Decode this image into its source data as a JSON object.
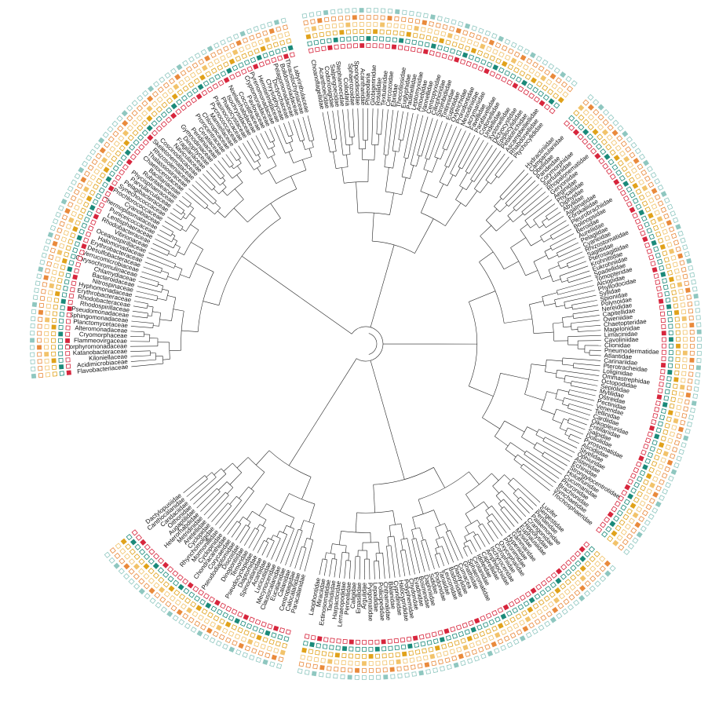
{
  "tree": {
    "groups": [
      {
        "name": "",
        "labels": [
          "Flavobacteriaceae",
          "Acidimicrobiaceae",
          "Kiloniellaceae",
          "Katanobacteraceae",
          "Porphyromonadaceae",
          "Flammeovirgaceae",
          "Cryomorphaceae",
          "Alteromonadaceae",
          "Planctomycetaceae",
          "Sphingomonadaceae",
          "Pseudomonadaceae",
          "Rhodospirillaceae",
          "Rhodobacteraceae",
          "Erythrobacteraceae",
          "Hyphomonadaceae",
          "Nitrospinaceae",
          "Bacteroidaceae",
          "Chlamydiaceae",
          "Chrysochromulinaceae",
          "Verrucomicrobiaceae",
          "Desulfobacteraceae",
          "Erythrobacteraceae",
          "Halomonadaceae",
          "Oceanospirillaceae",
          "Vibrionaceae",
          "Rhodobacteraceae",
          "Lentisphaeraceae",
          "Puniceicoccaceae",
          "Thermoplasmataceae",
          "Cyanobiaceae",
          "Prochlorococcaceae",
          "Synechococcaceae",
          "Pelagibacteraceae",
          "Parvularculaceae",
          "Phycisphaeraceae",
          "Rubritaleaceae",
          "Bacillariaceae",
          "Chaetocerotaceae",
          "Thalassiosiraceae",
          "Rhizosoleniaceae",
          "Skeletonemataceae",
          "Coscinodiscaceae",
          "Naviculaceae",
          "Fragilariaceae",
          "Dinophyceae",
          "Gymnodiniaceae",
          "Peridiniaceae",
          "Ceratiaceae",
          "Prorocentraceae",
          "Chloropicaceae",
          "Mamiellaceae",
          "Pycnococcaceae",
          "Prasinococcaceae",
          "Phaeocystaceae",
          "Isochrysidaceae",
          "Noelaerhabdaceae",
          "Coccolithaceae",
          "Pavlovaceae",
          "Cryptomonadaceae",
          "Pyrenomonadaceae",
          "Hemiselmidaceae",
          "Chrysophyceae",
          "Dictyochaceae",
          "Pelagomonadaceae",
          "Bolidomonadaceae",
          "Thraustochytriaceae",
          "Labyrinthulaceae"
        ]
      },
      {
        "name": "",
        "labels": [
          "Choanoflagellidae",
          "Acanthoecidae",
          "Codonosigidae",
          "Salpingoecidae",
          "Stephanoecidae",
          "Collodaria",
          "Sphaerozoidae",
          "Spongodiscidae",
          "Acantharidae",
          "Phaeodaria",
          "Globigerinidae",
          "Rotaliidae",
          "Textulariidae",
          "Cercozoidae",
          "Ebriidae",
          "Thecofilosidae",
          "Euglyphidae",
          "Paulinellidae",
          "Leptomyxidae",
          "Amoebidae",
          "Vannellidae",
          "Centropyxidae",
          "Ciliophoridae",
          "Strombidiidae",
          "Tintinnidae",
          "Euplotidae",
          "Oxytrichidae",
          "Prorodontidae",
          "Mesodiniidae",
          "Lacrymariidae",
          "Favellidae",
          "Parafavellidae",
          "Codonellidae",
          "Undellidae",
          "Xystonellidae",
          "Dictyocystidae",
          "Epiplocylididae",
          "Petalotrichidae",
          "Ascampbelliellidae",
          "Rhabdonellidae",
          "Ptychocylididae"
        ]
      },
      {
        "name": "",
        "labels": [
          "Hydractiniidae",
          "Campanulariidae",
          "Obeliidae",
          "Pandeidae",
          "Corymorphidae",
          "Sertulariidae",
          "Rhopalonematidae",
          "Geryoniidae",
          "Aeginidae",
          "Physaliidae",
          "Diphyidae",
          "Abylidae",
          "Agalmatidae",
          "Forskaliidae",
          "Pleurobrachiidae",
          "Bolinopsidae",
          "Beroidae",
          "Aureliidae",
          "Pelagiidae",
          "Cyaneidae",
          "Rhizostomatidae",
          "Sagittidae",
          "Pterosagittidae",
          "Krohnittidae",
          "Eukrohniidae",
          "Spadellidae",
          "Tomopteridae",
          "Alciopidae",
          "Phyllodocidae",
          "Syllidae",
          "Spionidae",
          "Polynoidae",
          "Nereididae",
          "Capitellidae",
          "Oweniidae",
          "Chaetopteridae",
          "Magelonidae",
          "Limacinidae",
          "Cavoliniidae",
          "Clionidae",
          "Pneumodermatidae",
          "Atlantidae",
          "Carinariidae",
          "Pterotracheidae",
          "Loliginidae",
          "Ommastrephidae",
          "Octopodidae",
          "Sepiolidae",
          "Mytilidae",
          "Ostreidae",
          "Pectinidae",
          "Veneridae",
          "Tellinidae",
          "Cardiidae",
          "Oikopleuridae",
          "Fritillariidae",
          "Salpidae",
          "Doliolidae",
          "Pyrosomatidae",
          "Ascidiidae",
          "Styelidae",
          "Ophiuridae",
          "Asteriidae",
          "Echinidae",
          "Strongylocentrotidae",
          "Holothuriidae",
          "Cucumariidae",
          "Phoronidae",
          "Brachionidae",
          "Synchaetidae",
          "Trochosphaeridae"
        ]
      },
      {
        "name": "",
        "labels": [
          "Lucifer",
          "Sergestidae",
          "Penaeidae",
          "Palaemonidae",
          "Crangonidae",
          "Hippolytidae",
          "Euphausiidae",
          "Mysidae",
          "Gammaridae",
          "Hyperiidae",
          "Phronimidae",
          "Oxycephalidae",
          "Corophiidae",
          "Ischyroceridae",
          "Amphilochidae",
          "Caprellidae",
          "Idoteidae",
          "Cirolanidae",
          "Sphaeromatidae",
          "Gnathiidae",
          "Cumacea",
          "Diastylidae",
          "Bodotriidae",
          "Leuconidae",
          "Tanaidae",
          "Podonidae",
          "Sididae",
          "Daphniidae",
          "Bosminidae",
          "Evadnidae",
          "Chydoridae",
          "Polyphemidae",
          "Halocyprididae",
          "Cypridinidae",
          "Balanidae",
          "Chthamalidae",
          "Pollicipedidae",
          "Lepadidae",
          "Pyrgomatidae",
          "Argulidae",
          "Ergasilidae",
          "Caligidae",
          "Pennellidae",
          "Lernaeopodidae",
          "Harpacticidae",
          "Tachidiidae",
          "Ectinosomatidae",
          "Miraciidae",
          "Laophontidae"
        ]
      },
      {
        "name": "",
        "labels": [
          "Paracalanidae",
          "Calocalanidae",
          "Centropagidae",
          "Calanidae",
          "Eucalanidae",
          "Clausocalanidae",
          "Mecynoceridae",
          "Lucicutiidae",
          "Acartiidae",
          "Spinocalanidae",
          "Diaptomidae",
          "Pseudocyclopidae",
          "Temoridae",
          "Dinopontiidae",
          "Discoidae",
          "Pseudodiaptomidae",
          "Corycaeidae",
          "Chondracanthidae",
          "Cyclopinidae",
          "Mormonillidae",
          "Rhynchomolgidae",
          "Cyclopidae",
          "Arietellidae",
          "Metridinidae",
          "Heterorhabdidae",
          "Augaptilidae",
          "Oithonidae",
          "Candaciidae",
          "Canthocalanidae",
          "Dactylopusiidae"
        ]
      }
    ]
  }
}
